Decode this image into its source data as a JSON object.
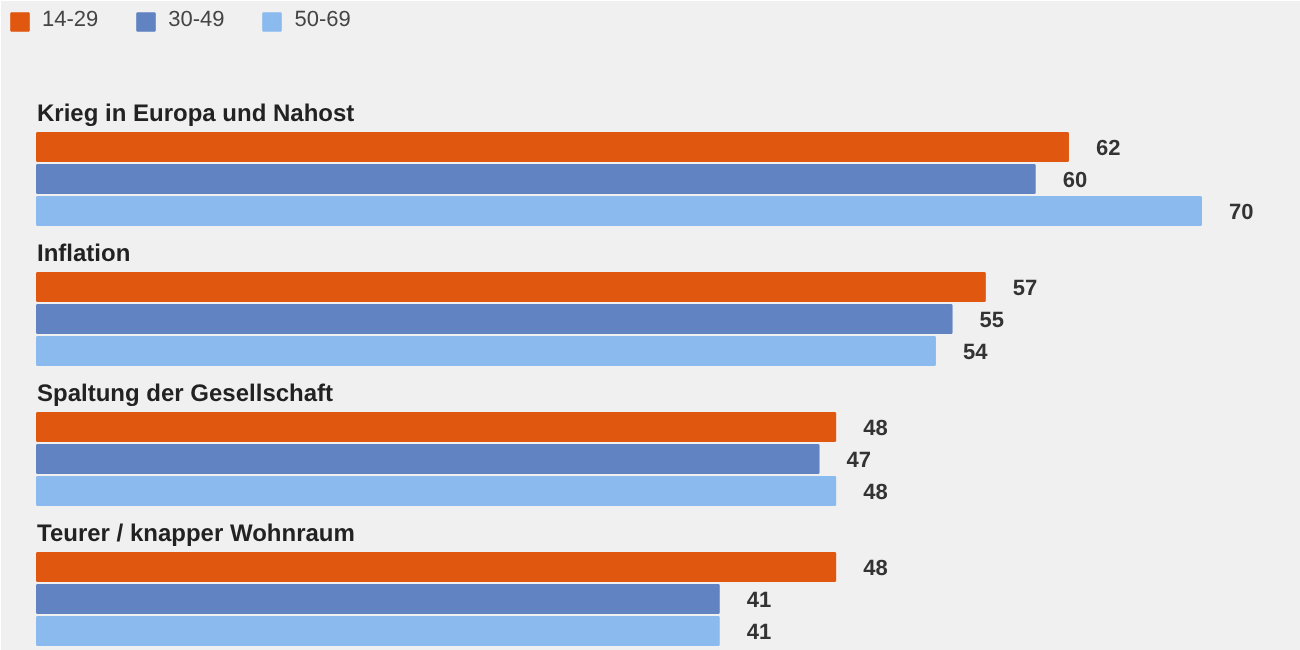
{
  "chart_data": {
    "type": "bar",
    "orientation": "horizontal",
    "categories": [
      "Krieg in Europa und Nahost",
      "Inflation",
      "Spaltung der Gesellschaft",
      "Teurer / knapper Wohnraum"
    ],
    "series": [
      {
        "name": "14-29",
        "color": "#e0570f",
        "values": [
          62,
          57,
          48,
          48
        ]
      },
      {
        "name": "30-49",
        "color": "#6283c2",
        "values": [
          60,
          55,
          47,
          41
        ]
      },
      {
        "name": "50-69",
        "color": "#8abaee",
        "values": [
          70,
          54,
          48,
          41
        ]
      }
    ],
    "data_labels": true,
    "legend": "top left",
    "grid": false
  }
}
